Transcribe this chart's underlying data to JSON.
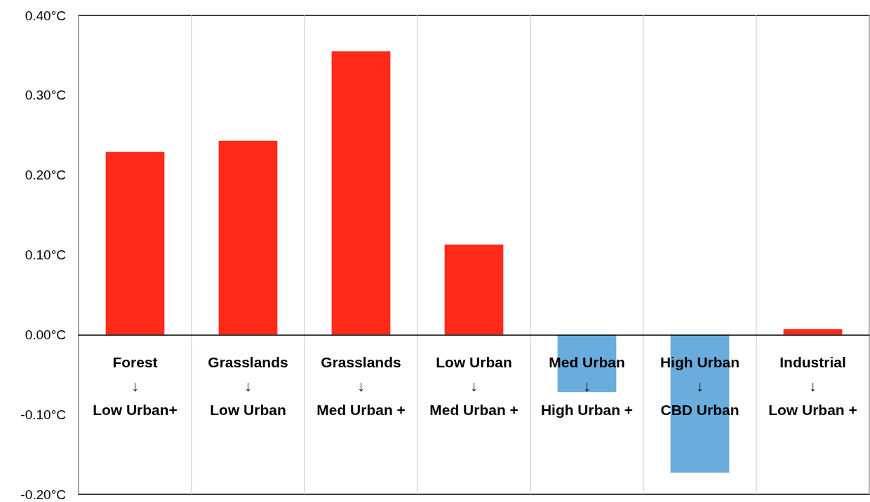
{
  "chart_data": {
    "type": "bar",
    "categories": [
      "Forest\n↓\nLow Urban+",
      "Grasslands\n↓\nLow Urban",
      "Grasslands\n↓\nMed Urban +",
      "Low Urban\n↓\nMed Urban +",
      "Med Urban\n↓\nHigh Urban +",
      "High Urban\n↓\nCBD Urban",
      "Industrial\n↓\nLow Urban +"
    ],
    "values": [
      0.229,
      0.243,
      0.355,
      0.113,
      -0.072,
      -0.173,
      0.007
    ],
    "colors": [
      "#ff2a1a",
      "#ff2a1a",
      "#ff2a1a",
      "#ff2a1a",
      "#6aacdc",
      "#6aacdc",
      "#ff2a1a"
    ],
    "ylim": [
      -0.2,
      0.4
    ],
    "yticks": [
      {
        "value": -0.2,
        "label": "-0.20°C"
      },
      {
        "value": -0.1,
        "label": "-0.10°C"
      },
      {
        "value": 0,
        "label": "0.00°C"
      },
      {
        "value": 0.1,
        "label": "0.10°C"
      },
      {
        "value": 0.2,
        "label": "0.20°C"
      },
      {
        "value": 0.3,
        "label": "0.30°C"
      },
      {
        "value": 0.4,
        "label": "0.40°C"
      }
    ],
    "grid": "x"
  }
}
